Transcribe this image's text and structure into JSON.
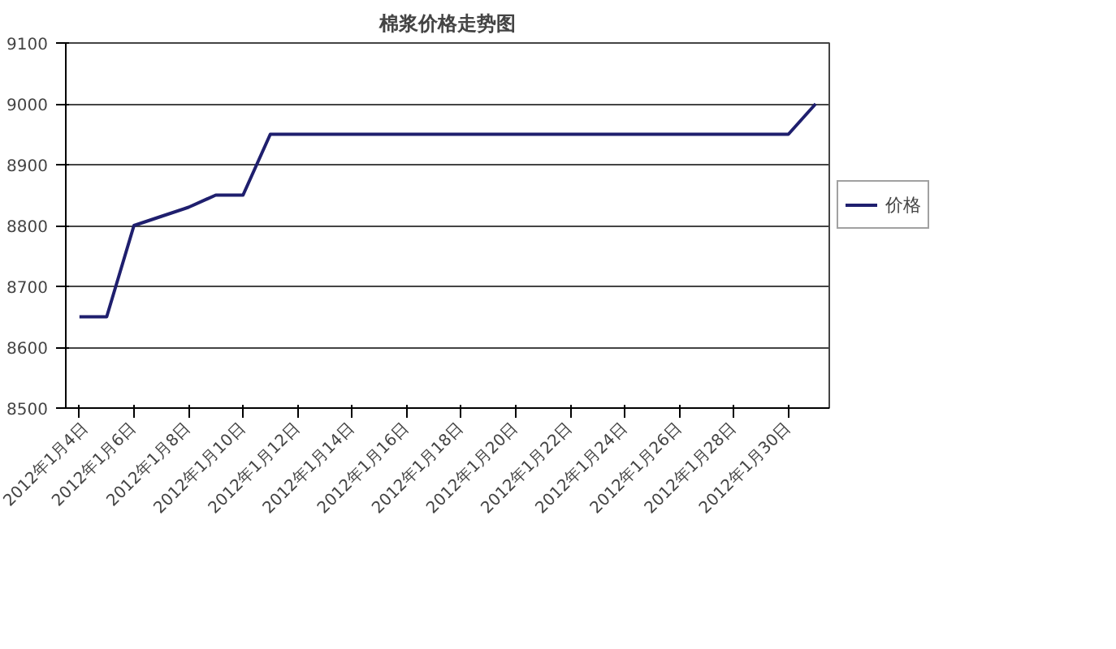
{
  "chart_data": {
    "type": "line",
    "title": "棉浆价格走势图",
    "categories": [
      "2012年1月4日",
      null,
      "2012年1月6日",
      null,
      "2012年1月8日",
      null,
      "2012年1月10日",
      null,
      "2012年1月12日",
      null,
      "2012年1月14日",
      null,
      "2012年1月16日",
      null,
      "2012年1月18日",
      null,
      "2012年1月20日",
      null,
      "2012年1月22日",
      null,
      "2012年1月24日",
      null,
      "2012年1月26日",
      null,
      "2012年1月28日",
      null,
      "2012年1月30日",
      null
    ],
    "series": [
      {
        "name": "价格",
        "color": "#1f1f6e",
        "values": [
          8650,
          8650,
          8800,
          8815,
          8830,
          8850,
          8850,
          8950,
          8950,
          8950,
          8950,
          8950,
          8950,
          8950,
          8950,
          8950,
          8950,
          8950,
          8950,
          8950,
          8950,
          8950,
          8950,
          8950,
          8950,
          8950,
          8950,
          9000
        ]
      }
    ],
    "ylim": [
      8500,
      9100
    ],
    "yticks": [
      8500,
      8600,
      8700,
      8800,
      8900,
      9000,
      9100
    ],
    "grid": "y",
    "legend": "right",
    "marker": "none",
    "line_style": "solid"
  }
}
